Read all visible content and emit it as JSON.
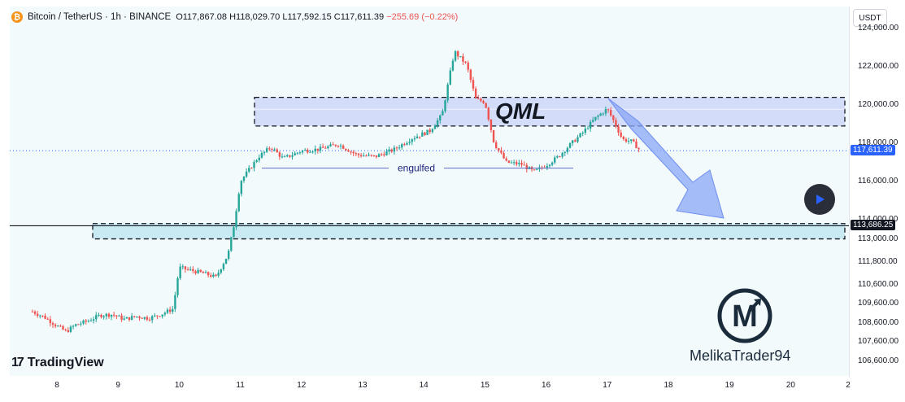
{
  "header": {
    "symbol": "Bitcoin / TetherUS · 1h · BINANCE",
    "open_label": "O",
    "open": "117,867.08",
    "high_label": "H",
    "high": "118,029.70",
    "low_label": "L",
    "low": "117,592.15",
    "close_label": "C",
    "close": "117,611.39",
    "change": "−255.69 (−0.22%)"
  },
  "currency_button": "USDT",
  "brand": {
    "name": "TradingView",
    "mark": "17"
  },
  "watermark": {
    "name": "MelikaTrader94",
    "logo_letter": "M"
  },
  "colors": {
    "up": "#26a69a",
    "down": "#ef5350",
    "candle_body": "#2962ff",
    "zone_fill": "#c5cef6",
    "support_fill": "#bfe6f0",
    "arrow": "#8aa7f5",
    "last_price_badge": "#2962ff",
    "level_badge": "#131722"
  },
  "chart_data": {
    "type": "candlestick",
    "x_ticks": [
      "8",
      "9",
      "10",
      "11",
      "12",
      "13",
      "14",
      "15",
      "16",
      "17",
      "18",
      "19",
      "20",
      "2"
    ],
    "y_ticks": [
      "124,000.00",
      "122,000.00",
      "120,000.00",
      "118,000.00",
      "116,000.00",
      "114,000.00",
      "113,000.00",
      "111,800.00",
      "110,600.00",
      "109,600.00",
      "108,600.00",
      "107,600.00",
      "106,600.00"
    ],
    "ylim": [
      106100,
      124100
    ],
    "last_price": "117,611.39",
    "level_price": "113,686.25",
    "annotations": {
      "qml_label": "QML",
      "engulfed_label": "engulfed",
      "qml_zone": [
        118900,
        120400
      ],
      "support_zone": [
        113000,
        113800
      ],
      "engulfed_level": 116700
    },
    "price_path": [
      [
        7.6,
        109200
      ],
      [
        7.8,
        108900
      ],
      [
        8.0,
        108450
      ],
      [
        8.15,
        108150
      ],
      [
        8.3,
        108500
      ],
      [
        8.5,
        108700
      ],
      [
        8.7,
        109000
      ],
      [
        8.9,
        109050
      ],
      [
        9.1,
        108800
      ],
      [
        9.3,
        108950
      ],
      [
        9.5,
        108850
      ],
      [
        9.7,
        109050
      ],
      [
        9.9,
        109350
      ],
      [
        10.0,
        111500
      ],
      [
        10.2,
        111350
      ],
      [
        10.4,
        111200
      ],
      [
        10.6,
        111000
      ],
      [
        10.8,
        112200
      ],
      [
        10.9,
        113800
      ],
      [
        11.0,
        116000
      ],
      [
        11.15,
        116650
      ],
      [
        11.3,
        117300
      ],
      [
        11.5,
        117800
      ],
      [
        11.7,
        117200
      ],
      [
        12.0,
        117600
      ],
      [
        12.3,
        117700
      ],
      [
        12.6,
        117950
      ],
      [
        12.9,
        117400
      ],
      [
        13.2,
        117300
      ],
      [
        13.5,
        117650
      ],
      [
        13.8,
        118250
      ],
      [
        14.1,
        118650
      ],
      [
        14.3,
        119500
      ],
      [
        14.5,
        122800
      ],
      [
        14.7,
        122100
      ],
      [
        14.85,
        120300
      ],
      [
        15.0,
        120150
      ],
      [
        15.15,
        118000
      ],
      [
        15.35,
        117000
      ],
      [
        15.6,
        116900
      ],
      [
        15.8,
        116500
      ],
      [
        16.0,
        116850
      ],
      [
        16.2,
        117300
      ],
      [
        16.4,
        117950
      ],
      [
        16.6,
        118550
      ],
      [
        16.8,
        119300
      ],
      [
        17.0,
        119800
      ],
      [
        17.1,
        119200
      ],
      [
        17.25,
        118200
      ],
      [
        17.4,
        118100
      ],
      [
        17.55,
        117600
      ]
    ]
  }
}
